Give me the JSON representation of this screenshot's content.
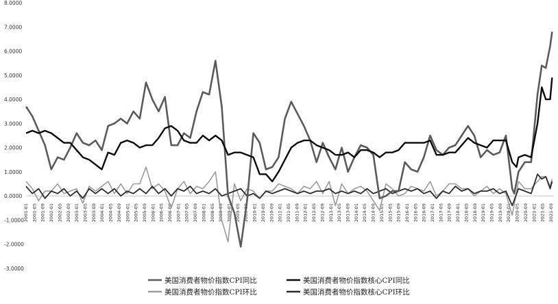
{
  "chart_data": {
    "type": "line",
    "title": "",
    "xlabel": "",
    "ylabel": "",
    "ylim": [
      -3,
      8
    ],
    "y_ticks": [
      "8.0000",
      "7.0000",
      "6.0000",
      "5.0000",
      "4.0000",
      "3.0000",
      "2.0000",
      "1.0000",
      "0.0000",
      "-1.0000",
      "-2.0000",
      "-3.0000"
    ],
    "x_tick_labels": [
      "2001-01",
      "2001-05",
      "2001-09",
      "2002-01",
      "2002-05",
      "2002-09",
      "2003-01",
      "2003-05",
      "2003-09",
      "2004-01",
      "2004-05",
      "2004-09",
      "2005-01",
      "2005-05",
      "2005-09",
      "2006-01",
      "2006-05",
      "2006-09",
      "2007-01",
      "2007-05",
      "2007-09",
      "2008-01",
      "2008-05",
      "2008-09",
      "2009-01",
      "2009-05",
      "2009-09",
      "2010-01",
      "2010-05",
      "2010-09",
      "2011-01",
      "2011-05",
      "2011-09",
      "2012-01",
      "2012-05",
      "2012-09",
      "2013-01",
      "2013-05",
      "2013-09",
      "2014-01",
      "2014-05",
      "2014-09",
      "2015-01",
      "2015-05",
      "2015-09",
      "2016-01",
      "2016-05",
      "2016-09",
      "2017-01",
      "2017-05",
      "2017-09",
      "2018-01",
      "2018-05",
      "2018-09",
      "2019-01",
      "2019-05",
      "2019-09",
      "2020-01",
      "2020-05",
      "2020-09",
      "2021-01",
      "2021-05",
      "2021-09"
    ],
    "grid": false,
    "legend_position": "bottom",
    "series": [
      {
        "name": "美国消费者物价指数CPI同比",
        "color": "#5a5a5a",
        "x": [
          2001.0,
          2001.25,
          2001.5,
          2001.75,
          2002.0,
          2002.25,
          2002.5,
          2002.75,
          2003.0,
          2003.25,
          2003.5,
          2003.75,
          2004.0,
          2004.25,
          2004.5,
          2004.75,
          2005.0,
          2005.25,
          2005.5,
          2005.75,
          2006.0,
          2006.25,
          2006.5,
          2006.75,
          2007.0,
          2007.25,
          2007.5,
          2007.75,
          2008.0,
          2008.25,
          2008.5,
          2008.75,
          2009.0,
          2009.25,
          2009.5,
          2009.75,
          2010.0,
          2010.25,
          2010.5,
          2010.75,
          2011.0,
          2011.25,
          2011.5,
          2011.75,
          2012.0,
          2012.25,
          2012.5,
          2012.75,
          2013.0,
          2013.25,
          2013.5,
          2013.75,
          2014.0,
          2014.25,
          2014.5,
          2014.75,
          2015.0,
          2015.25,
          2015.5,
          2015.75,
          2016.0,
          2016.25,
          2016.5,
          2016.75,
          2017.0,
          2017.25,
          2017.5,
          2017.75,
          2018.0,
          2018.25,
          2018.5,
          2018.75,
          2019.0,
          2019.25,
          2019.5,
          2019.75,
          2020.0,
          2020.25,
          2020.33,
          2020.5,
          2020.75,
          2021.0,
          2021.25,
          2021.42,
          2021.58,
          2021.75,
          2021.83
        ],
        "values": [
          3.7,
          3.3,
          2.7,
          2.1,
          1.1,
          1.6,
          1.5,
          2.0,
          2.6,
          2.2,
          2.1,
          2.3,
          1.9,
          2.9,
          3.0,
          3.2,
          3.0,
          3.5,
          3.2,
          4.7,
          4.0,
          3.5,
          4.1,
          2.1,
          2.1,
          2.6,
          2.4,
          3.5,
          4.3,
          4.2,
          5.6,
          3.7,
          0.0,
          -0.7,
          -2.1,
          -0.2,
          2.6,
          2.2,
          1.1,
          1.2,
          1.6,
          3.2,
          3.9,
          3.4,
          2.9,
          2.3,
          1.4,
          2.2,
          1.6,
          1.1,
          2.0,
          1.0,
          1.6,
          2.1,
          2.0,
          1.7,
          -0.1,
          0.0,
          0.2,
          0.2,
          1.4,
          1.1,
          1.0,
          1.6,
          2.5,
          1.9,
          1.7,
          2.0,
          2.1,
          2.5,
          2.9,
          2.5,
          1.6,
          1.9,
          1.7,
          1.8,
          2.5,
          0.3,
          0.1,
          1.0,
          1.4,
          1.4,
          4.2,
          5.4,
          5.3,
          6.2,
          6.8
        ]
      },
      {
        "name": "美国消费者物价指数核心CPI同比",
        "color": "#0a0a0a",
        "x": [
          2001.0,
          2001.25,
          2001.5,
          2001.75,
          2002.0,
          2002.25,
          2002.5,
          2002.75,
          2003.0,
          2003.25,
          2003.5,
          2003.75,
          2004.0,
          2004.25,
          2004.5,
          2004.75,
          2005.0,
          2005.25,
          2005.5,
          2005.75,
          2006.0,
          2006.25,
          2006.5,
          2006.75,
          2007.0,
          2007.25,
          2007.5,
          2007.75,
          2008.0,
          2008.25,
          2008.5,
          2008.75,
          2009.0,
          2009.25,
          2009.5,
          2009.75,
          2010.0,
          2010.25,
          2010.5,
          2010.75,
          2011.0,
          2011.25,
          2011.5,
          2011.75,
          2012.0,
          2012.25,
          2012.5,
          2012.75,
          2013.0,
          2013.25,
          2013.5,
          2013.75,
          2014.0,
          2014.25,
          2014.5,
          2014.75,
          2015.0,
          2015.25,
          2015.5,
          2015.75,
          2016.0,
          2016.25,
          2016.5,
          2016.75,
          2017.0,
          2017.25,
          2017.5,
          2017.75,
          2018.0,
          2018.25,
          2018.5,
          2018.75,
          2019.0,
          2019.25,
          2019.5,
          2019.75,
          2020.0,
          2020.25,
          2020.42,
          2020.5,
          2020.75,
          2021.0,
          2021.25,
          2021.42,
          2021.58,
          2021.75,
          2021.83
        ],
        "values": [
          2.6,
          2.7,
          2.6,
          2.7,
          2.6,
          2.4,
          2.2,
          2.2,
          1.9,
          1.6,
          1.5,
          1.3,
          1.1,
          1.8,
          1.7,
          2.2,
          2.3,
          2.2,
          2.0,
          2.1,
          2.1,
          2.4,
          2.8,
          2.9,
          2.7,
          2.3,
          2.2,
          2.2,
          2.5,
          2.3,
          2.5,
          2.3,
          1.7,
          1.8,
          1.8,
          1.7,
          1.6,
          0.9,
          0.9,
          0.6,
          1.0,
          1.5,
          2.0,
          2.2,
          2.3,
          2.3,
          2.1,
          2.0,
          1.9,
          1.7,
          1.7,
          1.8,
          1.6,
          1.9,
          1.9,
          1.8,
          1.6,
          1.8,
          1.8,
          1.9,
          2.2,
          2.2,
          2.2,
          2.2,
          2.3,
          1.7,
          1.7,
          1.8,
          1.8,
          2.1,
          2.4,
          2.2,
          2.1,
          2.0,
          2.3,
          2.3,
          2.3,
          1.4,
          1.2,
          1.6,
          1.7,
          1.6,
          3.0,
          4.5,
          4.0,
          4.0,
          4.9
        ]
      },
      {
        "name": "美国消费者物价指数CPI环比",
        "color": "#9a9a9a",
        "x": [
          2001.0,
          2001.25,
          2001.5,
          2001.75,
          2002.0,
          2002.25,
          2002.5,
          2002.75,
          2003.0,
          2003.25,
          2003.5,
          2003.75,
          2004.0,
          2004.25,
          2004.5,
          2004.75,
          2005.0,
          2005.25,
          2005.5,
          2005.75,
          2006.0,
          2006.25,
          2006.5,
          2006.75,
          2007.0,
          2007.25,
          2007.5,
          2007.75,
          2008.0,
          2008.25,
          2008.5,
          2008.75,
          2009.0,
          2009.25,
          2009.5,
          2009.75,
          2010.0,
          2010.25,
          2010.5,
          2010.75,
          2011.0,
          2011.25,
          2011.5,
          2011.75,
          2012.0,
          2012.25,
          2012.5,
          2012.75,
          2013.0,
          2013.25,
          2013.5,
          2013.75,
          2014.0,
          2014.25,
          2014.5,
          2014.75,
          2015.0,
          2015.25,
          2015.5,
          2015.75,
          2016.0,
          2016.25,
          2016.5,
          2016.75,
          2017.0,
          2017.25,
          2017.5,
          2017.75,
          2018.0,
          2018.25,
          2018.5,
          2018.75,
          2019.0,
          2019.25,
          2019.5,
          2019.75,
          2020.0,
          2020.25,
          2020.5,
          2020.75,
          2021.0,
          2021.25,
          2021.42,
          2021.58,
          2021.75,
          2021.83
        ],
        "values": [
          0.6,
          0.3,
          -0.2,
          0.2,
          0.2,
          0.5,
          0.1,
          0.2,
          0.3,
          -0.3,
          0.4,
          0.2,
          0.4,
          0.6,
          0.1,
          0.5,
          0.1,
          0.5,
          0.5,
          1.2,
          0.3,
          0.5,
          0.2,
          -0.5,
          0.3,
          0.6,
          0.1,
          0.4,
          0.3,
          0.6,
          1.0,
          -1.0,
          -1.9,
          0.5,
          -0.2,
          0.3,
          0.2,
          -0.1,
          0.2,
          0.2,
          0.5,
          0.4,
          0.3,
          0.1,
          0.4,
          0.3,
          0.6,
          0.1,
          0.6,
          -0.4,
          0.5,
          0.1,
          0.3,
          0.4,
          0.2,
          -0.2,
          -0.6,
          0.5,
          0.3,
          0.0,
          0.1,
          0.4,
          0.3,
          0.2,
          0.6,
          0.0,
          0.2,
          0.5,
          0.5,
          0.3,
          0.3,
          0.0,
          0.2,
          0.4,
          0.1,
          0.3,
          0.1,
          -0.8,
          0.6,
          0.3,
          0.3,
          0.6,
          0.8,
          0.8,
          0.4,
          0.7
        ]
      },
      {
        "name": "美国消费者物价指数核心CPI环比",
        "color": "#2a2a2a",
        "x": [
          2001.0,
          2001.25,
          2001.5,
          2001.75,
          2002.0,
          2002.25,
          2002.5,
          2002.75,
          2003.0,
          2003.25,
          2003.5,
          2003.75,
          2004.0,
          2004.25,
          2004.5,
          2004.75,
          2005.0,
          2005.25,
          2005.5,
          2005.75,
          2006.0,
          2006.25,
          2006.5,
          2006.75,
          2007.0,
          2007.25,
          2007.5,
          2007.75,
          2008.0,
          2008.25,
          2008.5,
          2008.75,
          2009.0,
          2009.25,
          2009.5,
          2009.75,
          2010.0,
          2010.25,
          2010.5,
          2010.75,
          2011.0,
          2011.25,
          2011.5,
          2011.75,
          2012.0,
          2012.25,
          2012.5,
          2012.75,
          2013.0,
          2013.25,
          2013.5,
          2013.75,
          2014.0,
          2014.25,
          2014.5,
          2014.75,
          2015.0,
          2015.25,
          2015.5,
          2015.75,
          2016.0,
          2016.25,
          2016.5,
          2016.75,
          2017.0,
          2017.25,
          2017.5,
          2017.75,
          2018.0,
          2018.25,
          2018.5,
          2018.75,
          2019.0,
          2019.25,
          2019.5,
          2019.75,
          2020.0,
          2020.25,
          2020.5,
          2020.75,
          2021.0,
          2021.25,
          2021.42,
          2021.58,
          2021.75,
          2021.83
        ],
        "values": [
          0.4,
          0.1,
          0.3,
          -0.1,
          0.2,
          0.1,
          0.3,
          0.0,
          0.2,
          -0.1,
          0.3,
          0.1,
          0.3,
          0.1,
          0.3,
          0.0,
          0.2,
          0.1,
          0.3,
          0.1,
          0.4,
          0.1,
          0.3,
          0.0,
          0.3,
          0.2,
          0.4,
          0.1,
          0.2,
          0.1,
          0.3,
          0.0,
          0.1,
          0.2,
          0.3,
          0.0,
          0.1,
          -0.1,
          0.2,
          0.1,
          0.2,
          0.3,
          0.2,
          0.1,
          0.2,
          0.1,
          0.2,
          0.2,
          0.3,
          0.1,
          0.2,
          0.1,
          0.2,
          0.1,
          0.3,
          0.1,
          0.2,
          0.3,
          0.1,
          0.2,
          0.3,
          0.2,
          0.3,
          0.1,
          0.2,
          -0.1,
          0.2,
          0.1,
          0.4,
          0.2,
          0.3,
          0.1,
          0.2,
          0.2,
          0.3,
          0.1,
          0.2,
          -0.4,
          0.3,
          0.2,
          0.1,
          0.9,
          0.7,
          0.8,
          0.3,
          0.6
        ]
      }
    ]
  }
}
